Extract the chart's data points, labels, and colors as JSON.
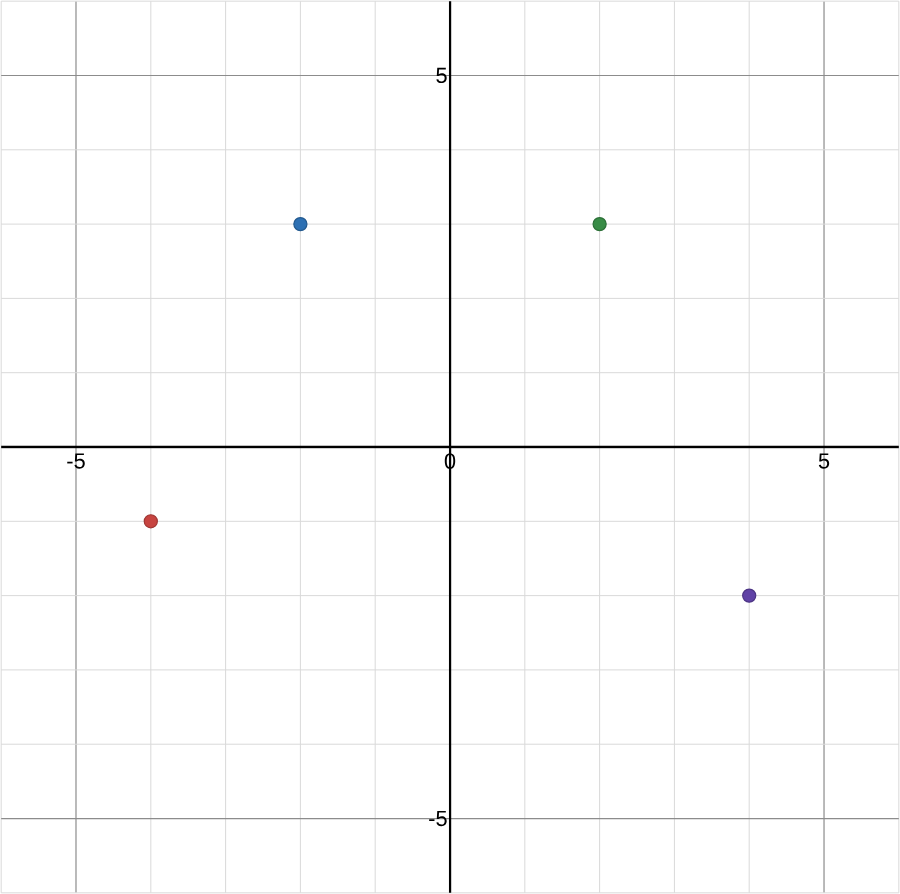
{
  "chart_data": {
    "type": "scatter",
    "x": [
      -2,
      2,
      -4,
      4
    ],
    "values": [
      3,
      3,
      -1,
      -2
    ],
    "colors": [
      "#2d70b3",
      "#388c46",
      "#c74440",
      "#6042a6"
    ],
    "xlim": [
      -6,
      6
    ],
    "ylim": [
      -6,
      6
    ],
    "xticks": [
      {
        "value": -6,
        "label": null
      },
      -5,
      {
        "value": -4,
        "label": null
      },
      {
        "value": -3,
        "label": null
      },
      {
        "value": -2,
        "label": null
      },
      {
        "value": -1,
        "label": null
      },
      0,
      {
        "value": 1,
        "label": null
      },
      {
        "value": 2,
        "label": null
      },
      {
        "value": 3,
        "label": null
      },
      {
        "value": 4,
        "label": null
      },
      5,
      {
        "value": 6,
        "label": null
      }
    ],
    "yticks": [
      {
        "value": -6,
        "label": null
      },
      -5,
      {
        "value": -4,
        "label": null
      },
      {
        "value": -3,
        "label": null
      },
      {
        "value": -2,
        "label": null
      },
      {
        "value": -1,
        "label": null
      },
      {
        "value": 0,
        "label": null
      },
      {
        "value": 1,
        "label": null
      },
      {
        "value": 2,
        "label": null
      },
      {
        "value": 3,
        "label": null
      },
      {
        "value": 4,
        "label": null
      },
      5,
      {
        "value": 6,
        "label": null
      }
    ],
    "grid": true,
    "marker": "circle"
  }
}
